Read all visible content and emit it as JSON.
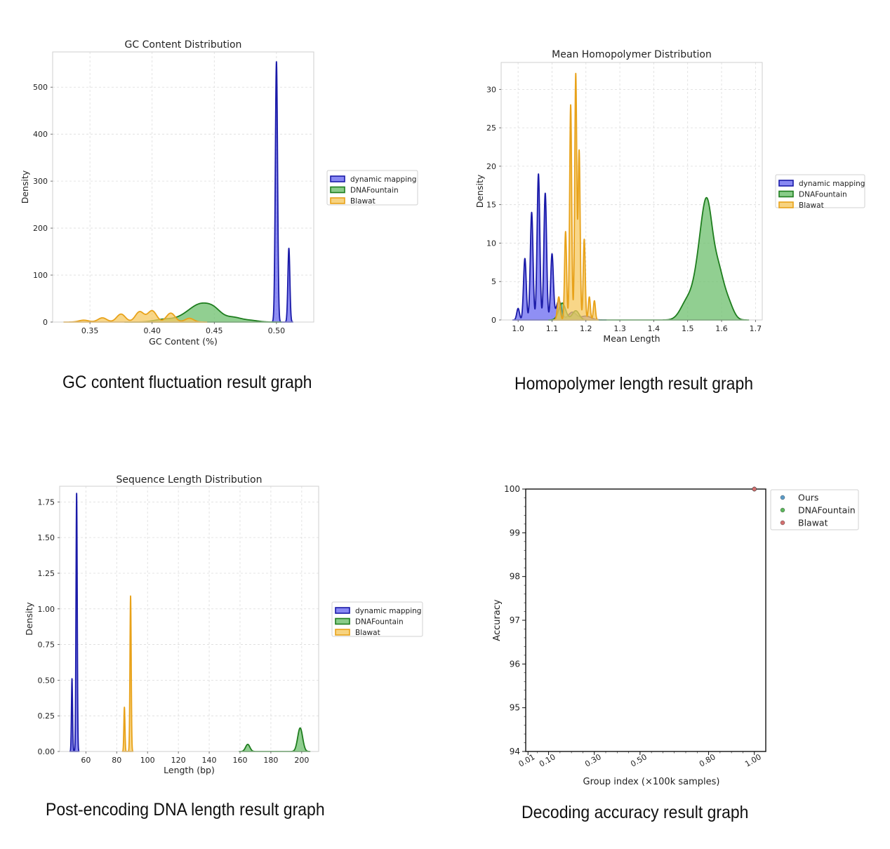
{
  "captions": {
    "gc": "GC content fluctuation result graph",
    "homo": "Homopolymer length result graph",
    "len": "Post-encoding DNA length result graph",
    "acc": "Decoding accuracy result graph"
  },
  "colors": {
    "dynamic_mapping": "#1a1aa8",
    "dynamic_fill": "#6a6af0",
    "dnafountain": "#1e7d1e",
    "dnafountain_fill": "#6cbf6c",
    "blawat": "#e8a21a",
    "blawat_fill": "#f5c860",
    "ours_dot": "#5b9bc8",
    "dnaf_dot": "#5cb85c",
    "blawat_dot": "#d47070"
  },
  "chart_data": [
    {
      "id": "gc",
      "type": "area",
      "title": "GC Content Distribution",
      "xlabel": "GC Content (%)",
      "ylabel": "Density",
      "xlim": [
        0.32,
        0.53
      ],
      "ylim": [
        0,
        575
      ],
      "xticks": [
        0.35,
        0.4,
        0.45,
        0.5
      ],
      "xtick_labels": [
        "0.35",
        "0.40",
        "0.45",
        "0.50"
      ],
      "yticks": [
        0,
        100,
        200,
        300,
        400,
        500
      ],
      "ytick_labels": [
        "0",
        "100",
        "200",
        "300",
        "400",
        "500"
      ],
      "grid": true,
      "legend_position": "outside-right",
      "series": [
        {
          "name": "dynamic mapping",
          "key": "dynamic_mapping",
          "peaks": [
            [
              0.5,
              554,
              0.0009
            ],
            [
              0.51,
              157,
              0.0008
            ]
          ]
        },
        {
          "name": "DNAFountain",
          "key": "dnafountain",
          "peaks": [
            [
              0.41,
              6,
              0.008
            ],
            [
              0.43,
              17,
              0.008
            ],
            [
              0.44,
              27,
              0.007
            ],
            [
              0.45,
              22,
              0.006
            ],
            [
              0.465,
              10,
              0.007
            ],
            [
              0.48,
              3,
              0.006
            ]
          ]
        },
        {
          "name": "Blawat",
          "key": "blawat",
          "peaks": [
            [
              0.345,
              4,
              0.004
            ],
            [
              0.36,
              9,
              0.0035
            ],
            [
              0.375,
              17,
              0.0035
            ],
            [
              0.39,
              22,
              0.0035
            ],
            [
              0.4,
              24,
              0.0035
            ],
            [
              0.415,
              19,
              0.0035
            ],
            [
              0.43,
              8,
              0.0035
            ]
          ]
        }
      ]
    },
    {
      "id": "homo",
      "type": "area",
      "title": "Mean Homopolymer Distribution",
      "xlabel": "Mean Length",
      "ylabel": "Density",
      "xlim": [
        0.95,
        1.72
      ],
      "ylim": [
        0,
        33.5
      ],
      "xticks": [
        1.0,
        1.1,
        1.2,
        1.3,
        1.4,
        1.5,
        1.6,
        1.7
      ],
      "xtick_labels": [
        "1.0",
        "1.1",
        "1.2",
        "1.3",
        "1.4",
        "1.5",
        "1.6",
        "1.7"
      ],
      "yticks": [
        0,
        5,
        10,
        15,
        20,
        25,
        30
      ],
      "ytick_labels": [
        "0",
        "5",
        "10",
        "15",
        "20",
        "25",
        "30"
      ],
      "grid": true,
      "legend_position": "outside-right",
      "series": [
        {
          "name": "dynamic mapping",
          "key": "dynamic_mapping",
          "peaks": [
            [
              1.0,
              1.5,
              0.004
            ],
            [
              1.02,
              8,
              0.004
            ],
            [
              1.04,
              14,
              0.004
            ],
            [
              1.06,
              19,
              0.004
            ],
            [
              1.08,
              16.5,
              0.004
            ],
            [
              1.1,
              8.5,
              0.004
            ],
            [
              1.12,
              2.5,
              0.008
            ],
            [
              1.16,
              1,
              0.012
            ],
            [
              1.2,
              0.5,
              0.015
            ]
          ]
        },
        {
          "name": "DNAFountain",
          "key": "dnafountain",
          "peaks": [
            [
              1.13,
              2.2,
              0.01
            ],
            [
              1.17,
              1.2,
              0.01
            ],
            [
              1.5,
              2.5,
              0.02
            ],
            [
              1.54,
              8,
              0.018
            ],
            [
              1.56,
              10.2,
              0.015
            ],
            [
              1.59,
              6,
              0.016
            ],
            [
              1.62,
              2,
              0.015
            ]
          ]
        },
        {
          "name": "Blawat",
          "key": "blawat",
          "peaks": [
            [
              1.12,
              3,
              0.004
            ],
            [
              1.14,
              11.5,
              0.003
            ],
            [
              1.155,
              28,
              0.003
            ],
            [
              1.17,
              32,
              0.003
            ],
            [
              1.18,
              22,
              0.003
            ],
            [
              1.195,
              10.5,
              0.003
            ],
            [
              1.21,
              3,
              0.003
            ],
            [
              1.225,
              2.5,
              0.003
            ]
          ]
        }
      ]
    },
    {
      "id": "len",
      "type": "area",
      "title": "Sequence Length Distribution",
      "xlabel": "Length (bp)",
      "ylabel": "Density",
      "xlim": [
        43,
        211
      ],
      "ylim": [
        0,
        1.86
      ],
      "xticks": [
        60,
        80,
        100,
        120,
        140,
        160,
        180,
        200
      ],
      "xtick_labels": [
        "60",
        "80",
        "100",
        "120",
        "140",
        "160",
        "180",
        "200"
      ],
      "yticks": [
        0,
        0.25,
        0.5,
        0.75,
        1.0,
        1.25,
        1.5,
        1.75
      ],
      "ytick_labels": [
        "0.00",
        "0.25",
        "0.50",
        "0.75",
        "1.00",
        "1.25",
        "1.50",
        "1.75"
      ],
      "grid": true,
      "legend_position": "outside-right",
      "series": [
        {
          "name": "dynamic mapping",
          "key": "dynamic_mapping",
          "peaks": [
            [
              51,
              0.51,
              0.35
            ],
            [
              54,
              1.81,
              0.4
            ]
          ]
        },
        {
          "name": "DNAFountain",
          "key": "dnafountain",
          "peaks": [
            [
              165,
              0.05,
              1.4
            ],
            [
              199,
              0.165,
              1.6
            ]
          ]
        },
        {
          "name": "Blawat",
          "key": "blawat",
          "peaks": [
            [
              85,
              0.31,
              0.35
            ],
            [
              89,
              1.09,
              0.4
            ]
          ]
        }
      ]
    },
    {
      "id": "acc",
      "type": "scatter",
      "title": "",
      "xlabel": "Group index (×100k samples)",
      "ylabel": "Accuracy",
      "xlim": [
        0,
        1.05
      ],
      "ylim": [
        94,
        100
      ],
      "xticks": [
        0.01,
        0.1,
        0.3,
        0.5,
        0.8,
        1.0
      ],
      "xtick_labels": [
        "0.01",
        "0.10",
        "0.30",
        "0.50",
        "0.80",
        "1.00"
      ],
      "yticks": [
        94,
        95,
        96,
        97,
        98,
        99,
        100
      ],
      "ytick_labels": [
        "94",
        "95",
        "96",
        "97",
        "98",
        "99",
        "100"
      ],
      "grid": false,
      "legend_position": "outside-right",
      "series": [
        {
          "name": "Ours",
          "key": "ours_dot",
          "points": [
            [
              1.0,
              100
            ]
          ]
        },
        {
          "name": "DNAFountain",
          "key": "dnaf_dot",
          "points": [
            [
              1.0,
              100
            ]
          ]
        },
        {
          "name": "Blawat",
          "key": "blawat_dot",
          "points": [
            [
              1.0,
              100
            ]
          ]
        }
      ]
    }
  ]
}
